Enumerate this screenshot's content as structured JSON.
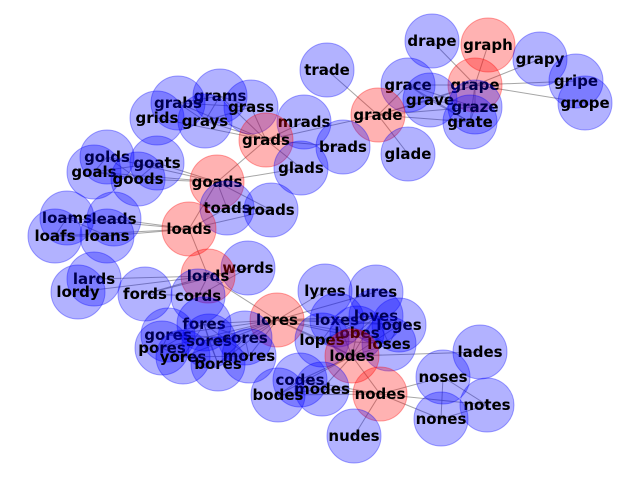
{
  "graph": {
    "colors": {
      "highlight": "#ff0000",
      "normal": "#0000ff",
      "edge": "#808080",
      "label": "#000000"
    },
    "nodes": [
      {
        "id": "drape",
        "label": "drape",
        "highlight": false
      },
      {
        "id": "graph",
        "label": "graph",
        "highlight": true
      },
      {
        "id": "grapy",
        "label": "grapy",
        "highlight": false
      },
      {
        "id": "gripe",
        "label": "gripe",
        "highlight": false
      },
      {
        "id": "grope",
        "label": "grope",
        "highlight": false
      },
      {
        "id": "trade",
        "label": "trade",
        "highlight": false
      },
      {
        "id": "grace",
        "label": "grace",
        "highlight": false
      },
      {
        "id": "grape",
        "label": "grape",
        "highlight": true
      },
      {
        "id": "grave",
        "label": "grave",
        "highlight": false
      },
      {
        "id": "graze",
        "label": "graze",
        "highlight": false
      },
      {
        "id": "grate",
        "label": "grate",
        "highlight": false
      },
      {
        "id": "grade",
        "label": "grade",
        "highlight": true
      },
      {
        "id": "glade",
        "label": "glade",
        "highlight": false
      },
      {
        "id": "grams",
        "label": "grams",
        "highlight": false
      },
      {
        "id": "grabs",
        "label": "grabs",
        "highlight": false
      },
      {
        "id": "grass",
        "label": "grass",
        "highlight": false
      },
      {
        "id": "grids",
        "label": "grids",
        "highlight": false
      },
      {
        "id": "grays",
        "label": "grays",
        "highlight": false
      },
      {
        "id": "mrads",
        "label": "mrads",
        "highlight": false
      },
      {
        "id": "grads",
        "label": "grads",
        "highlight": true
      },
      {
        "id": "brads",
        "label": "brads",
        "highlight": false
      },
      {
        "id": "golds",
        "label": "golds",
        "highlight": false
      },
      {
        "id": "goats",
        "label": "goats",
        "highlight": false
      },
      {
        "id": "goals",
        "label": "goals",
        "highlight": false
      },
      {
        "id": "goods",
        "label": "goods",
        "highlight": false
      },
      {
        "id": "glads",
        "label": "glads",
        "highlight": false
      },
      {
        "id": "goads",
        "label": "goads",
        "highlight": true
      },
      {
        "id": "toads",
        "label": "toads",
        "highlight": false
      },
      {
        "id": "roads",
        "label": "roads",
        "highlight": false
      },
      {
        "id": "loams",
        "label": "loams",
        "highlight": false
      },
      {
        "id": "leads",
        "label": "leads",
        "highlight": false
      },
      {
        "id": "loafs",
        "label": "loafs",
        "highlight": false
      },
      {
        "id": "loans",
        "label": "loans",
        "highlight": false
      },
      {
        "id": "loads",
        "label": "loads",
        "highlight": true
      },
      {
        "id": "words",
        "label": "words",
        "highlight": false
      },
      {
        "id": "lards",
        "label": "lards",
        "highlight": false
      },
      {
        "id": "lords",
        "label": "lords",
        "highlight": true
      },
      {
        "id": "lordy",
        "label": "lordy",
        "highlight": false
      },
      {
        "id": "fords",
        "label": "fords",
        "highlight": false
      },
      {
        "id": "cords",
        "label": "cords",
        "highlight": false
      },
      {
        "id": "lyres",
        "label": "lyres",
        "highlight": false
      },
      {
        "id": "lures",
        "label": "lures",
        "highlight": false
      },
      {
        "id": "loxes",
        "label": "loxes",
        "highlight": false
      },
      {
        "id": "loves",
        "label": "loves",
        "highlight": false
      },
      {
        "id": "lores",
        "label": "lores",
        "highlight": true
      },
      {
        "id": "loges",
        "label": "loges",
        "highlight": false
      },
      {
        "id": "fores",
        "label": "fores",
        "highlight": false
      },
      {
        "id": "lobes",
        "label": "lobes",
        "highlight": false
      },
      {
        "id": "gores",
        "label": "gores",
        "highlight": false
      },
      {
        "id": "cores",
        "label": "cores",
        "highlight": false
      },
      {
        "id": "lopes",
        "label": "lopes",
        "highlight": false
      },
      {
        "id": "loses",
        "label": "loses",
        "highlight": false
      },
      {
        "id": "pores",
        "label": "pores",
        "highlight": false
      },
      {
        "id": "sores",
        "label": "sores",
        "highlight": false
      },
      {
        "id": "lades",
        "label": "lades",
        "highlight": false
      },
      {
        "id": "yores",
        "label": "yores",
        "highlight": false
      },
      {
        "id": "mores",
        "label": "mores",
        "highlight": false
      },
      {
        "id": "lodes",
        "label": "lodes",
        "highlight": true
      },
      {
        "id": "bores",
        "label": "bores",
        "highlight": false
      },
      {
        "id": "codes",
        "label": "codes",
        "highlight": false
      },
      {
        "id": "noses",
        "label": "noses",
        "highlight": false
      },
      {
        "id": "modes",
        "label": "modes",
        "highlight": false
      },
      {
        "id": "bodes",
        "label": "bodes",
        "highlight": false
      },
      {
        "id": "nodes",
        "label": "nodes",
        "highlight": true
      },
      {
        "id": "notes",
        "label": "notes",
        "highlight": false
      },
      {
        "id": "nones",
        "label": "nones",
        "highlight": false
      },
      {
        "id": "nudes",
        "label": "nudes",
        "highlight": false
      }
    ],
    "edges": [
      [
        "graph",
        "grape"
      ],
      [
        "grape",
        "drape"
      ],
      [
        "grape",
        "grapy"
      ],
      [
        "grape",
        "gripe"
      ],
      [
        "grape",
        "grope"
      ],
      [
        "grape",
        "grace"
      ],
      [
        "grape",
        "grave"
      ],
      [
        "grape",
        "graze"
      ],
      [
        "grape",
        "grate"
      ],
      [
        "grape",
        "grade"
      ],
      [
        "grade",
        "trade"
      ],
      [
        "grade",
        "grace"
      ],
      [
        "grade",
        "grave"
      ],
      [
        "grade",
        "graze"
      ],
      [
        "grade",
        "grate"
      ],
      [
        "grade",
        "glade"
      ],
      [
        "grade",
        "grads"
      ],
      [
        "grace",
        "grave"
      ],
      [
        "grace",
        "graze"
      ],
      [
        "grace",
        "grate"
      ],
      [
        "grave",
        "graze"
      ],
      [
        "grave",
        "grate"
      ],
      [
        "graze",
        "grate"
      ],
      [
        "grads",
        "grams"
      ],
      [
        "grads",
        "grabs"
      ],
      [
        "grads",
        "grass"
      ],
      [
        "grads",
        "grids"
      ],
      [
        "grads",
        "grays"
      ],
      [
        "grads",
        "mrads"
      ],
      [
        "grads",
        "brads"
      ],
      [
        "grads",
        "glads"
      ],
      [
        "grads",
        "goads"
      ],
      [
        "grams",
        "grabs"
      ],
      [
        "grams",
        "grass"
      ],
      [
        "grams",
        "grays"
      ],
      [
        "grabs",
        "grass"
      ],
      [
        "grabs",
        "grays"
      ],
      [
        "grass",
        "grays"
      ],
      [
        "goads",
        "golds"
      ],
      [
        "goads",
        "goats"
      ],
      [
        "goads",
        "goals"
      ],
      [
        "goads",
        "goods"
      ],
      [
        "goads",
        "glads"
      ],
      [
        "goads",
        "toads"
      ],
      [
        "goads",
        "roads"
      ],
      [
        "goads",
        "loads"
      ],
      [
        "golds",
        "goals"
      ],
      [
        "golds",
        "goods"
      ],
      [
        "goats",
        "goals"
      ],
      [
        "goats",
        "goods"
      ],
      [
        "goals",
        "goods"
      ],
      [
        "toads",
        "roads"
      ],
      [
        "toads",
        "loads"
      ],
      [
        "roads",
        "loads"
      ],
      [
        "loads",
        "loams"
      ],
      [
        "loads",
        "leads"
      ],
      [
        "loads",
        "loafs"
      ],
      [
        "loads",
        "loans"
      ],
      [
        "loads",
        "lords"
      ],
      [
        "loams",
        "loafs"
      ],
      [
        "loams",
        "loans"
      ],
      [
        "loafs",
        "loans"
      ],
      [
        "lords",
        "words"
      ],
      [
        "lords",
        "lards"
      ],
      [
        "lords",
        "lordy"
      ],
      [
        "lords",
        "fords"
      ],
      [
        "lords",
        "cords"
      ],
      [
        "lords",
        "lores"
      ],
      [
        "words",
        "fords"
      ],
      [
        "words",
        "cords"
      ],
      [
        "fords",
        "cords"
      ],
      [
        "lores",
        "lyres"
      ],
      [
        "lores",
        "lures"
      ],
      [
        "lores",
        "loxes"
      ],
      [
        "lores",
        "loves"
      ],
      [
        "lores",
        "loges"
      ],
      [
        "lores",
        "fores"
      ],
      [
        "lores",
        "lobes"
      ],
      [
        "lores",
        "gores"
      ],
      [
        "lores",
        "cores"
      ],
      [
        "lores",
        "lopes"
      ],
      [
        "lores",
        "loses"
      ],
      [
        "lores",
        "pores"
      ],
      [
        "lores",
        "sores"
      ],
      [
        "lores",
        "yores"
      ],
      [
        "lores",
        "mores"
      ],
      [
        "lores",
        "bores"
      ],
      [
        "lores",
        "lodes"
      ],
      [
        "fores",
        "gores"
      ],
      [
        "fores",
        "cores"
      ],
      [
        "fores",
        "pores"
      ],
      [
        "fores",
        "sores"
      ],
      [
        "fores",
        "yores"
      ],
      [
        "fores",
        "mores"
      ],
      [
        "fores",
        "bores"
      ],
      [
        "gores",
        "cores"
      ],
      [
        "gores",
        "pores"
      ],
      [
        "gores",
        "sores"
      ],
      [
        "cores",
        "sores"
      ],
      [
        "cores",
        "mores"
      ],
      [
        "cores",
        "bores"
      ],
      [
        "pores",
        "yores"
      ],
      [
        "sores",
        "bores"
      ],
      [
        "yores",
        "mores"
      ],
      [
        "loxes",
        "loves"
      ],
      [
        "loxes",
        "loges"
      ],
      [
        "loxes",
        "lobes"
      ],
      [
        "loxes",
        "lopes"
      ],
      [
        "loxes",
        "loses"
      ],
      [
        "loves",
        "loges"
      ],
      [
        "loves",
        "lobes"
      ],
      [
        "loves",
        "lopes"
      ],
      [
        "loves",
        "loses"
      ],
      [
        "lobes",
        "lopes"
      ],
      [
        "lobes",
        "loses"
      ],
      [
        "lopes",
        "loses"
      ],
      [
        "loges",
        "loses"
      ],
      [
        "lodes",
        "lobes"
      ],
      [
        "lodes",
        "lopes"
      ],
      [
        "lodes",
        "loses"
      ],
      [
        "lodes",
        "loves"
      ],
      [
        "lodes",
        "loxes"
      ],
      [
        "lodes",
        "loges"
      ],
      [
        "lodes",
        "lades"
      ],
      [
        "lodes",
        "codes"
      ],
      [
        "lodes",
        "modes"
      ],
      [
        "lodes",
        "bodes"
      ],
      [
        "lodes",
        "nodes"
      ],
      [
        "codes",
        "modes"
      ],
      [
        "codes",
        "bodes"
      ],
      [
        "modes",
        "bodes"
      ],
      [
        "nodes",
        "codes"
      ],
      [
        "nodes",
        "modes"
      ],
      [
        "nodes",
        "bodes"
      ],
      [
        "nodes",
        "noses"
      ],
      [
        "nodes",
        "notes"
      ],
      [
        "nodes",
        "nones"
      ],
      [
        "nodes",
        "nudes"
      ],
      [
        "noses",
        "notes"
      ],
      [
        "noses",
        "nones"
      ],
      [
        "notes",
        "nones"
      ]
    ]
  }
}
